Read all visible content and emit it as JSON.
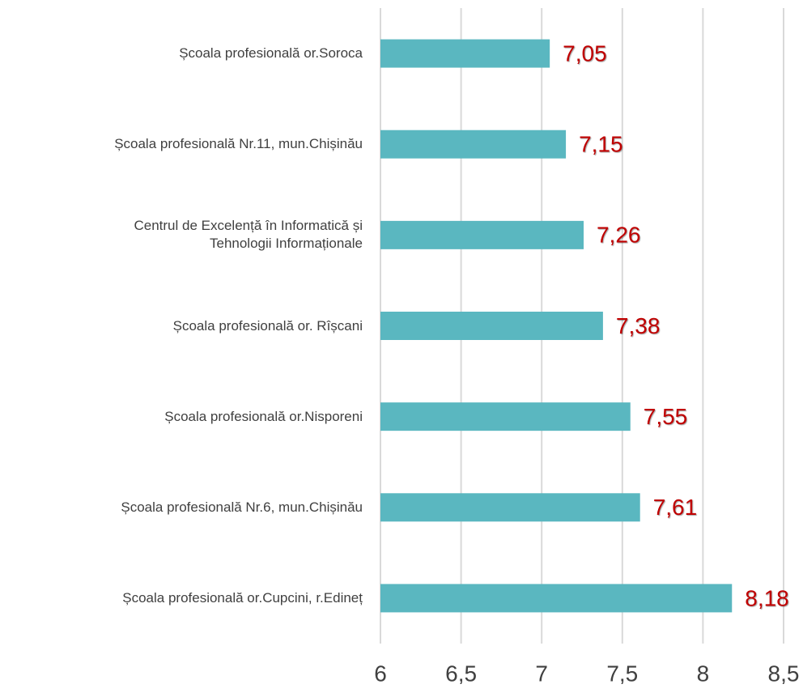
{
  "chart_data": {
    "type": "bar",
    "orientation": "horizontal",
    "categories": [
      "Școala profesională or.Soroca",
      "Școala profesională Nr.11, mun.Chișinău",
      "Centrul de Excelență în Informatică și\nTehnologii Informaționale",
      "Școala profesională or. Rîșcani",
      "Școala profesională or.Nisporeni",
      "Școala profesională Nr.6, mun.Chișinău",
      "Școala profesională or.Cupcini, r.Edineț"
    ],
    "values": [
      7.05,
      7.15,
      7.26,
      7.38,
      7.55,
      7.61,
      8.18
    ],
    "value_labels": [
      "7,05",
      "7,15",
      "7,26",
      "7,38",
      "7,55",
      "7,61",
      "8,18"
    ],
    "color": "#5ab7c0",
    "label_color": "#c00000",
    "xlim": [
      6,
      8.5
    ],
    "xticks": [
      6,
      {
        "value": 6.5,
        "label": "6,5"
      },
      7,
      {
        "value": 7.5,
        "label": "7,5"
      },
      8,
      {
        "value": 8.5,
        "label": "8,5"
      }
    ],
    "grid": true
  }
}
